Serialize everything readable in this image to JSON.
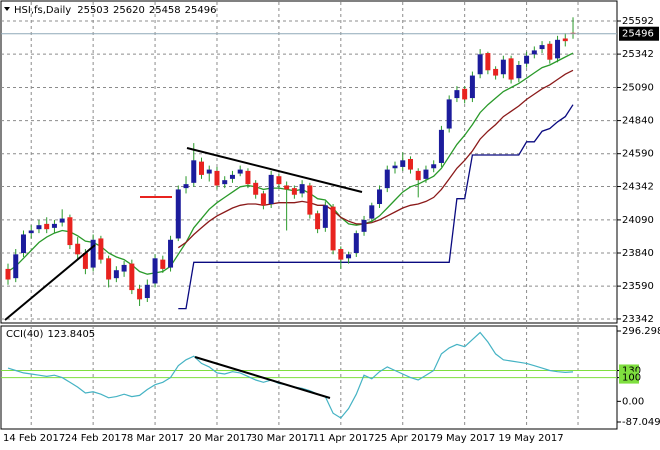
{
  "chart_data": [
    {
      "type": "candlestick",
      "title": "HSI,fs,Daily",
      "categories": [
        "14 Feb 2017",
        null,
        null,
        null,
        null,
        null,
        null,
        null,
        "24 Feb 2017",
        null,
        null,
        null,
        null,
        null,
        null,
        null,
        "8 Mar 2017",
        null,
        null,
        null,
        null,
        null,
        null,
        null,
        "20 Mar 2017",
        null,
        null,
        null,
        null,
        null,
        null,
        null,
        "30 Mar 2017",
        null,
        null,
        null,
        null,
        null,
        null,
        null,
        "11 Apr 2017",
        null,
        null,
        null,
        null,
        null,
        null,
        null,
        "25 Apr 2017",
        null,
        null,
        null,
        null,
        null,
        null,
        null,
        "9 May 2017",
        null,
        null,
        null,
        null,
        null,
        null,
        null,
        "19 May 2017",
        null,
        null,
        null,
        null,
        null,
        null,
        null,
        null,
        null
      ],
      "ohlc": [
        [
          23720,
          23760,
          23600,
          23640
        ],
        [
          23650,
          23870,
          23620,
          23830
        ],
        [
          23840,
          24010,
          23810,
          23980
        ],
        [
          23990,
          24050,
          23950,
          24010
        ],
        [
          24020,
          24090,
          23990,
          24050
        ],
        [
          24060,
          24110,
          23990,
          24020
        ],
        [
          24030,
          24090,
          23990,
          24060
        ],
        [
          24070,
          24170,
          24040,
          24100
        ],
        [
          24110,
          24130,
          23870,
          23900
        ],
        [
          23910,
          23960,
          23790,
          23830
        ],
        [
          23840,
          23870,
          23680,
          23720
        ],
        [
          23730,
          23980,
          23700,
          23940
        ],
        [
          23950,
          23970,
          23760,
          23790
        ],
        [
          23800,
          23820,
          23580,
          23640
        ],
        [
          23650,
          23740,
          23620,
          23710
        ],
        [
          23700,
          23780,
          23660,
          23750
        ],
        [
          23760,
          23790,
          23530,
          23560
        ],
        [
          23570,
          23600,
          23440,
          23490
        ],
        [
          23500,
          23640,
          23470,
          23600
        ],
        [
          23610,
          23830,
          23580,
          23800
        ],
        [
          23790,
          23820,
          23690,
          23720
        ],
        [
          23730,
          23970,
          23700,
          23940
        ],
        [
          23950,
          24350,
          23930,
          24320
        ],
        [
          24330,
          24420,
          24290,
          24360
        ],
        [
          24370,
          24670,
          24340,
          24540
        ],
        [
          24530,
          24560,
          24400,
          24430
        ],
        [
          24440,
          24500,
          24380,
          24470
        ],
        [
          24460,
          24490,
          24320,
          24350
        ],
        [
          24360,
          24420,
          24330,
          24390
        ],
        [
          24400,
          24460,
          24370,
          24430
        ],
        [
          24440,
          24500,
          24420,
          24470
        ],
        [
          24460,
          24480,
          24330,
          24360
        ],
        [
          24370,
          24390,
          24250,
          24280
        ],
        [
          24290,
          24310,
          24170,
          24200
        ],
        [
          24210,
          24460,
          24180,
          24430
        ],
        [
          24420,
          24440,
          24330,
          24360
        ],
        [
          24350,
          24380,
          24010,
          24320
        ],
        [
          24330,
          24350,
          24250,
          24280
        ],
        [
          24290,
          24390,
          24260,
          24360
        ],
        [
          24350,
          24370,
          24100,
          24130
        ],
        [
          24140,
          24160,
          23990,
          24020
        ],
        [
          24030,
          24230,
          24000,
          24200
        ],
        [
          24190,
          24210,
          23830,
          23860
        ],
        [
          23870,
          23890,
          23720,
          23790
        ],
        [
          23800,
          23850,
          23760,
          23830
        ],
        [
          23840,
          24010,
          23810,
          23990
        ],
        [
          24000,
          24120,
          23970,
          24090
        ],
        [
          24100,
          24220,
          24070,
          24200
        ],
        [
          24210,
          24350,
          24180,
          24320
        ],
        [
          24330,
          24500,
          24300,
          24470
        ],
        [
          24480,
          24530,
          24440,
          24500
        ],
        [
          24490,
          24600,
          24460,
          24540
        ],
        [
          24550,
          24570,
          24440,
          24470
        ],
        [
          24460,
          24480,
          24260,
          24390
        ],
        [
          24400,
          24500,
          24370,
          24470
        ],
        [
          24480,
          24540,
          24450,
          24510
        ],
        [
          24520,
          24800,
          24490,
          24770
        ],
        [
          24780,
          25030,
          24750,
          25000
        ],
        [
          25010,
          25100,
          24980,
          25070
        ],
        [
          25080,
          25100,
          24970,
          25000
        ],
        [
          25010,
          25210,
          24980,
          25180
        ],
        [
          25190,
          25380,
          25160,
          25340
        ],
        [
          25350,
          25360,
          25190,
          25220
        ],
        [
          25230,
          25250,
          25150,
          25180
        ],
        [
          25190,
          25330,
          25160,
          25300
        ],
        [
          25310,
          25330,
          25120,
          25150
        ],
        [
          25160,
          25290,
          25130,
          25260
        ],
        [
          25270,
          25360,
          25240,
          25330
        ],
        [
          25340,
          25400,
          25310,
          25370
        ],
        [
          25380,
          25440,
          25350,
          25410
        ],
        [
          25420,
          25440,
          25270,
          25300
        ],
        [
          25310,
          25480,
          25280,
          25450
        ],
        [
          25460,
          25500,
          25400,
          25440
        ],
        [
          25503,
          25620,
          25458,
          25496
        ]
      ],
      "up_color": "#1c1c9c",
      "down_color": "#e8231f",
      "wick_color": "#2a9a2a",
      "lines": [
        {
          "color": "#2a9a2a",
          "values": [
            23700,
            23740,
            23800,
            23860,
            23920,
            23960,
            23990,
            24010,
            24000,
            23970,
            23930,
            23920,
            23890,
            23840,
            23810,
            23790,
            23750,
            23700,
            23680,
            23690,
            23700,
            23740,
            23830,
            23920,
            24030,
            24100,
            24170,
            24220,
            24260,
            24300,
            24340,
            24350,
            24340,
            24320,
            24330,
            24330,
            24320,
            24310,
            24320,
            24290,
            24250,
            24240,
            24180,
            24110,
            24060,
            24050,
            24060,
            24080,
            24120,
            24180,
            24240,
            24300,
            24340,
            24360,
            24390,
            24420,
            24480,
            24570,
            24660,
            24730,
            24810,
            24900,
            24960,
            25010,
            25060,
            25090,
            25120,
            25160,
            25200,
            25240,
            25260,
            25290,
            25320,
            25350
          ]
        },
        {
          "color": "#8b1a1a",
          "values": [
            null,
            null,
            null,
            null,
            null,
            null,
            null,
            null,
            null,
            null,
            null,
            null,
            null,
            null,
            null,
            null,
            null,
            null,
            null,
            null,
            null,
            null,
            23880,
            23920,
            23980,
            24030,
            24080,
            24120,
            24150,
            24180,
            24200,
            24210,
            24210,
            24200,
            24210,
            24220,
            24220,
            24220,
            24230,
            24220,
            24200,
            24200,
            24160,
            24110,
            24080,
            24060,
            24060,
            24070,
            24090,
            24120,
            24150,
            24180,
            24200,
            24210,
            24230,
            24260,
            24320,
            24400,
            24480,
            24540,
            24610,
            24700,
            24760,
            24810,
            24870,
            24910,
            24950,
            25000,
            25040,
            25080,
            25110,
            25150,
            25190,
            25220
          ]
        },
        {
          "color": "#0a0a80",
          "values": [
            null,
            null,
            null,
            null,
            null,
            null,
            null,
            null,
            null,
            null,
            null,
            null,
            null,
            null,
            null,
            null,
            null,
            null,
            null,
            null,
            null,
            null,
            23420,
            23420,
            23770,
            23770,
            23770,
            23770,
            23770,
            23770,
            23770,
            23770,
            23770,
            23770,
            23770,
            23770,
            23770,
            23770,
            23770,
            23770,
            23770,
            23770,
            23770,
            23770,
            23770,
            23770,
            23770,
            23770,
            23770,
            23770,
            23770,
            23770,
            23770,
            23770,
            23770,
            23770,
            23770,
            23770,
            24250,
            24250,
            24580,
            24580,
            24580,
            24580,
            24580,
            24580,
            24580,
            24680,
            24680,
            24760,
            24780,
            24830,
            24870,
            24960
          ]
        }
      ],
      "ylim": [
        23319,
        25728
      ],
      "yticks": [
        25592,
        25342,
        25090,
        24840,
        24590,
        24342,
        24090,
        23840,
        23590,
        23342
      ],
      "grid": true,
      "last_price_color": "#8fa9b8"
    },
    {
      "type": "line",
      "title": "CCI(40)",
      "values": [
        140,
        130,
        120,
        115,
        110,
        105,
        110,
        100,
        80,
        60,
        35,
        40,
        30,
        15,
        20,
        30,
        20,
        25,
        50,
        70,
        80,
        100,
        150,
        175,
        190,
        160,
        145,
        120,
        115,
        125,
        120,
        105,
        90,
        80,
        90,
        75,
        70,
        60,
        55,
        45,
        30,
        20,
        -50,
        -70,
        -30,
        30,
        110,
        95,
        125,
        145,
        130,
        115,
        100,
        90,
        110,
        130,
        200,
        225,
        240,
        230,
        260,
        290,
        250,
        200,
        175,
        170,
        165,
        160,
        150,
        140,
        130,
        125,
        122,
        123.8405
      ],
      "color": "#45b3c4",
      "ylim": [
        -87.0498,
        296.2986
      ],
      "yticks": [
        296.2986,
        130,
        100,
        {
          "value": 0,
          "label": "0.00"
        },
        -87.0498
      ],
      "levels": [
        130,
        100
      ],
      "level_color": "#7fdf3f"
    }
  ]
}
